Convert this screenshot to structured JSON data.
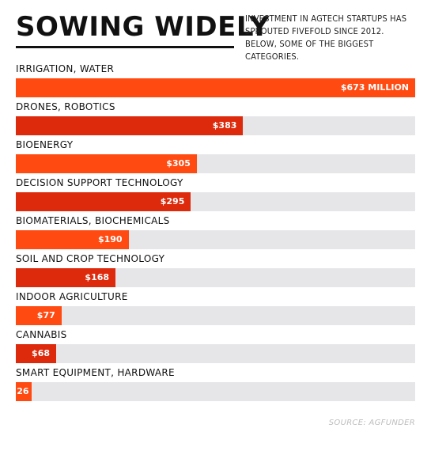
{
  "header": {
    "title": "SOWING WIDELY",
    "subtitle": "INVESTMENT IN AGTECH STARTUPS HAS SPROUTED FIVEFOLD SINCE 2012. BELOW, SOME OF THE BIGGEST CATEGORIES."
  },
  "source": "SOURCE: AGFUNDER",
  "colors": {
    "orange": "#ff4a12",
    "red": "#dd2a0c",
    "track": "#e6e6e9"
  },
  "chart_data": {
    "type": "bar",
    "orientation": "horizontal",
    "xlim": [
      0,
      673
    ],
    "grid": false,
    "categories": [
      "IRRIGATION, WATER",
      "DRONES, ROBOTICS",
      "BIOENERGY",
      "DECISION SUPPORT TECHNOLOGY",
      "BIOMATERIALS, BIOCHEMICALS",
      "SOIL AND CROP TECHNOLOGY",
      "INDOOR AGRICULTURE",
      "CANNABIS",
      "SMART EQUIPMENT, HARDWARE"
    ],
    "values": [
      673,
      383,
      305,
      295,
      190,
      168,
      77,
      68,
      26
    ],
    "value_labels": [
      "$673 MILLION",
      "$383",
      "$305",
      "$295",
      "$190",
      "$168",
      "$77",
      "$68",
      "26"
    ],
    "bar_colors": [
      "#ff4a12",
      "#dd2a0c",
      "#ff4a12",
      "#dd2a0c",
      "#ff4a12",
      "#dd2a0c",
      "#ff4a12",
      "#dd2a0c",
      "#ff4a12"
    ]
  }
}
